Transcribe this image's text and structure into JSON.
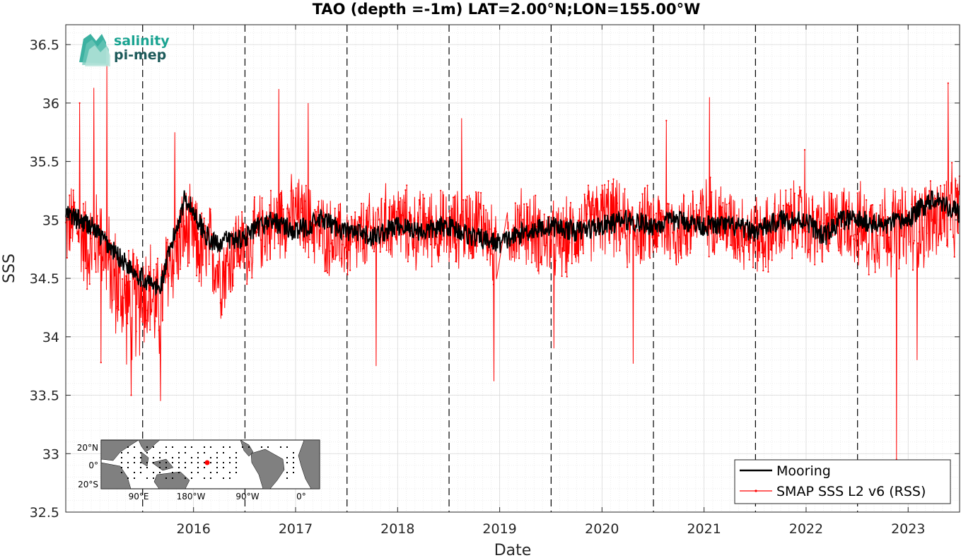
{
  "chart_data": {
    "type": "line",
    "title": "TAO (depth =-1m) LAT=2.00°N;LON=155.00°W",
    "xlabel": "Date",
    "ylabel": "SSS",
    "xlim": [
      "2015-04-01",
      "2024-01-01"
    ],
    "ylim": [
      32.5,
      36.67
    ],
    "x_ticks": [
      "2016",
      "2017",
      "2018",
      "2019",
      "2020",
      "2021",
      "2022",
      "2023"
    ],
    "y_ticks": [
      "32.5",
      "33",
      "33.5",
      "34",
      "34.5",
      "35",
      "35.5",
      "36",
      "36.5"
    ],
    "grid": true,
    "year_marker_lines": [
      "2016-01-01",
      "2017-01-01",
      "2018-01-01",
      "2019-01-01",
      "2020-01-01",
      "2021-01-01",
      "2022-01-01",
      "2023-01-01"
    ],
    "legend_position": "bottom-right",
    "series": [
      {
        "name": "Mooring",
        "color": "#000000",
        "x": [
          "2015-04-01",
          "2015-07-01",
          "2015-10-01",
          "2016-01-01",
          "2016-03-01",
          "2016-06-01",
          "2016-09-01",
          "2017-01-01",
          "2017-04-01",
          "2017-07-01",
          "2017-10-01",
          "2018-01-01",
          "2018-04-01",
          "2018-07-01",
          "2018-10-01",
          "2019-01-01",
          "2019-04-01",
          "2019-07-01",
          "2019-10-01",
          "2020-01-01",
          "2020-04-01",
          "2020-07-01",
          "2020-10-01",
          "2021-01-01",
          "2021-04-01",
          "2021-07-01",
          "2021-10-01",
          "2022-01-01",
          "2022-04-01",
          "2022-07-01",
          "2022-09-01",
          "2022-11-01",
          "2023-01-01",
          "2023-04-01",
          "2023-07-01",
          "2023-10-01",
          "2024-01-01"
        ],
        "y": [
          35.05,
          34.95,
          34.7,
          34.5,
          34.4,
          35.2,
          34.8,
          34.85,
          35.0,
          34.9,
          35.0,
          34.9,
          34.85,
          34.95,
          34.9,
          34.95,
          34.85,
          34.8,
          34.9,
          34.95,
          34.9,
          34.95,
          35.0,
          34.95,
          35.0,
          34.95,
          34.95,
          34.9,
          35.0,
          35.0,
          34.85,
          35.0,
          35.0,
          34.95,
          35.0,
          35.2,
          35.05
        ]
      },
      {
        "name": "SMAP SSS L2 v6 (RSS)",
        "color": "#ff0000",
        "x": [
          "2015-04-01",
          "2015-05-01",
          "2015-06-01",
          "2015-07-01",
          "2015-08-01",
          "2015-09-01",
          "2015-10-01",
          "2015-11-01",
          "2015-12-01",
          "2016-01-01",
          "2016-02-01",
          "2016-03-01",
          "2016-04-01",
          "2016-05-01",
          "2016-06-01",
          "2016-07-01",
          "2016-08-01",
          "2016-09-01",
          "2016-10-01",
          "2016-11-01",
          "2016-12-01",
          "2017-01-01",
          "2017-03-01",
          "2017-05-01",
          "2017-07-01",
          "2017-09-01",
          "2017-11-01",
          "2018-01-01",
          "2018-03-01",
          "2018-05-01",
          "2018-07-01",
          "2018-09-01",
          "2018-11-01",
          "2019-01-01",
          "2019-03-01",
          "2019-05-01",
          "2019-06-15",
          "2019-08-01",
          "2019-10-01",
          "2019-12-01",
          "2020-02-01",
          "2020-04-01",
          "2020-06-01",
          "2020-08-01",
          "2020-10-01",
          "2020-12-01",
          "2021-02-01",
          "2021-04-01",
          "2021-06-01",
          "2021-08-01",
          "2021-10-01",
          "2021-12-01",
          "2022-02-01",
          "2022-04-01",
          "2022-06-01",
          "2022-08-01",
          "2022-10-01",
          "2022-12-01",
          "2023-02-01",
          "2023-04-01",
          "2023-06-01",
          "2023-08-01",
          "2023-10-01",
          "2023-12-01"
        ],
        "y": [
          34.9,
          35.0,
          34.85,
          34.75,
          34.9,
          34.6,
          34.45,
          34.3,
          34.25,
          34.4,
          34.35,
          34.2,
          34.6,
          34.75,
          34.9,
          34.85,
          34.7,
          34.75,
          34.55,
          34.6,
          34.8,
          34.75,
          34.9,
          35.0,
          35.05,
          34.95,
          34.85,
          34.8,
          34.85,
          34.95,
          35.0,
          34.9,
          34.95,
          34.9,
          34.95,
          35.0,
          34.7,
          34.9,
          34.95,
          34.85,
          34.8,
          34.9,
          35.0,
          35.05,
          34.9,
          34.95,
          34.95,
          34.9,
          35.0,
          35.05,
          34.95,
          34.9,
          34.85,
          34.95,
          35.0,
          34.9,
          34.95,
          35.0,
          34.9,
          34.95,
          34.9,
          34.95,
          35.0,
          35.05
        ],
        "spread": [
          0.3,
          0.3,
          0.35,
          0.4,
          0.35,
          0.4,
          0.45,
          0.45,
          0.45,
          0.45,
          0.45,
          0.4,
          0.4,
          0.35,
          0.35,
          0.35,
          0.35,
          0.35,
          0.35,
          0.35,
          0.3,
          0.3,
          0.3,
          0.3,
          0.3,
          0.3,
          0.3,
          0.3,
          0.3,
          0.3,
          0.3,
          0.3,
          0.3,
          0.3,
          0.3,
          0.3,
          0.3,
          0.3,
          0.3,
          0.3,
          0.3,
          0.3,
          0.3,
          0.3,
          0.3,
          0.3,
          0.3,
          0.3,
          0.3,
          0.3,
          0.3,
          0.3,
          0.3,
          0.3,
          0.3,
          0.3,
          0.3,
          0.3,
          0.35,
          0.35,
          0.35,
          0.35,
          0.35,
          0.35
        ],
        "spikes": [
          {
            "x": "2015-05-20",
            "y": 36.0
          },
          {
            "x": "2015-07-10",
            "y": 36.13
          },
          {
            "x": "2015-08-25",
            "y": 36.33
          },
          {
            "x": "2015-08-05",
            "y": 33.78
          },
          {
            "x": "2015-11-20",
            "y": 33.5
          },
          {
            "x": "2016-03-05",
            "y": 33.45
          },
          {
            "x": "2016-04-25",
            "y": 35.75
          },
          {
            "x": "2017-05-01",
            "y": 36.12
          },
          {
            "x": "2017-08-15",
            "y": 36.0
          },
          {
            "x": "2018-04-15",
            "y": 33.75
          },
          {
            "x": "2019-02-15",
            "y": 35.87
          },
          {
            "x": "2019-06-10",
            "y": 33.62
          },
          {
            "x": "2020-01-10",
            "y": 33.9
          },
          {
            "x": "2020-10-20",
            "y": 33.77
          },
          {
            "x": "2021-02-15",
            "y": 35.85
          },
          {
            "x": "2021-07-20",
            "y": 36.05
          },
          {
            "x": "2022-06-25",
            "y": 35.6
          },
          {
            "x": "2023-05-20",
            "y": 32.95
          },
          {
            "x": "2023-08-01",
            "y": 33.8
          },
          {
            "x": "2023-11-20",
            "y": 36.17
          }
        ]
      }
    ]
  },
  "inset_map": {
    "lat_labels": [
      "20°N",
      "0°",
      "20°S"
    ],
    "lon_labels": [
      "90°E",
      "180°W",
      "90°W",
      "0°"
    ]
  },
  "logo": {
    "line1": "salinity",
    "line2": "pi-mep"
  },
  "colors": {
    "mooring": "#000000",
    "smap": "#ff0000",
    "logo_teal": "#1aa391",
    "logo_dark": "#1d5a5a",
    "land": "#808080"
  }
}
